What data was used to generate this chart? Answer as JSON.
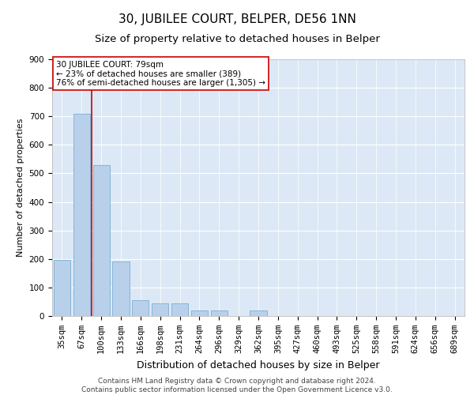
{
  "title": "30, JUBILEE COURT, BELPER, DE56 1NN",
  "subtitle": "Size of property relative to detached houses in Belper",
  "xlabel": "Distribution of detached houses by size in Belper",
  "ylabel": "Number of detached properties",
  "categories": [
    "35sqm",
    "67sqm",
    "100sqm",
    "133sqm",
    "166sqm",
    "198sqm",
    "231sqm",
    "264sqm",
    "296sqm",
    "329sqm",
    "362sqm",
    "395sqm",
    "427sqm",
    "460sqm",
    "493sqm",
    "525sqm",
    "558sqm",
    "591sqm",
    "624sqm",
    "656sqm",
    "689sqm"
  ],
  "values": [
    197,
    710,
    530,
    190,
    55,
    45,
    45,
    20,
    20,
    0,
    20,
    0,
    0,
    0,
    0,
    0,
    0,
    0,
    0,
    0,
    0
  ],
  "bar_color": "#b8d0ea",
  "bar_edge_color": "#7aaed6",
  "vline_x_index": 1.5,
  "vline_color": "#cc0000",
  "annotation_text": "30 JUBILEE COURT: 79sqm\n← 23% of detached houses are smaller (389)\n76% of semi-detached houses are larger (1,305) →",
  "annotation_box_color": "#ffffff",
  "annotation_box_edge_color": "#cc0000",
  "ylim": [
    0,
    900
  ],
  "yticks": [
    0,
    100,
    200,
    300,
    400,
    500,
    600,
    700,
    800,
    900
  ],
  "bg_color": "#dce8f5",
  "grid_color": "#ffffff",
  "footer": "Contains HM Land Registry data © Crown copyright and database right 2024.\nContains public sector information licensed under the Open Government Licence v3.0.",
  "title_fontsize": 11,
  "subtitle_fontsize": 9.5,
  "xlabel_fontsize": 9,
  "ylabel_fontsize": 8,
  "tick_fontsize": 7.5,
  "footer_fontsize": 6.5,
  "annotation_fontsize": 7.5
}
